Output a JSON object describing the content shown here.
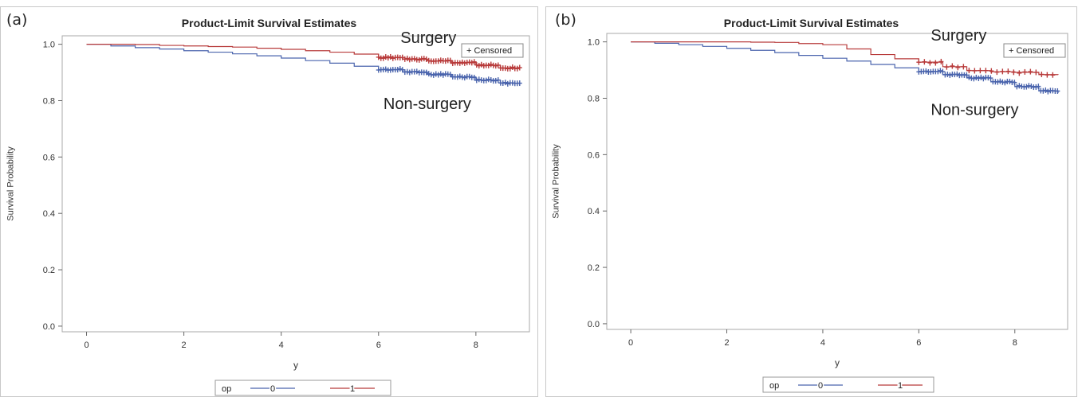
{
  "chart_data": [
    {
      "type": "line",
      "panel_label": "(a)",
      "title": "Product-Limit Survival Estimates",
      "xlabel": "y",
      "ylabel": "Survival Probability",
      "xticks": [
        "0",
        "2",
        "4",
        "6",
        "8"
      ],
      "yticks": [
        "0.0",
        "0.2",
        "0.4",
        "0.6",
        "0.8",
        "1.0"
      ],
      "xlim": [
        -0.5,
        9.1
      ],
      "ylim": [
        -0.02,
        1.03
      ],
      "grid": false,
      "censored_legend": "+ Censored",
      "legend": {
        "title": "op",
        "placement": "bottom",
        "entries": [
          "0",
          "1"
        ]
      },
      "annotations": [
        {
          "text": "Surgery",
          "x": 6.45,
          "y": 1.005
        },
        {
          "text": "Non-surgery",
          "x": 6.1,
          "y": 0.77
        }
      ],
      "series": [
        {
          "legend": "0",
          "color": "#4a64ad",
          "x": [
            0,
            0.5,
            1,
            1.5,
            2,
            2.5,
            3,
            3.5,
            4,
            4.5,
            5,
            5.5,
            6,
            6.5,
            7,
            7.5,
            8,
            8.5,
            8.9
          ],
          "y": [
            1.0,
            0.994,
            0.988,
            0.983,
            0.977,
            0.972,
            0.966,
            0.959,
            0.951,
            0.942,
            0.933,
            0.922,
            0.91,
            0.902,
            0.893,
            0.884,
            0.873,
            0.862,
            0.855
          ],
          "censored_from": 6.0
        },
        {
          "legend": "1",
          "color": "#b83b3b",
          "x": [
            0,
            1,
            1.5,
            2,
            2.5,
            3,
            3.5,
            4,
            4.5,
            5,
            5.5,
            6,
            6.5,
            7,
            7.5,
            8,
            8.5,
            8.9
          ],
          "y": [
            1.0,
            0.999,
            0.996,
            0.994,
            0.992,
            0.99,
            0.986,
            0.982,
            0.977,
            0.972,
            0.965,
            0.953,
            0.947,
            0.941,
            0.935,
            0.926,
            0.916,
            0.913
          ],
          "censored_from": 6.0
        }
      ]
    },
    {
      "type": "line",
      "panel_label": "(b)",
      "title": "Product-Limit Survival Estimates",
      "xlabel": "y",
      "ylabel": "Survival Probability",
      "xticks": [
        "0",
        "2",
        "4",
        "6",
        "8"
      ],
      "yticks": [
        "0.0",
        "0.2",
        "0.4",
        "0.6",
        "0.8",
        "1.0"
      ],
      "xlim": [
        -0.5,
        9.1
      ],
      "ylim": [
        -0.02,
        1.03
      ],
      "grid": false,
      "censored_legend": "+ Censored",
      "legend": {
        "title": "op",
        "placement": "bottom",
        "entries": [
          "0",
          "1"
        ]
      },
      "annotations": [
        {
          "text": "Surgery",
          "x": 6.25,
          "y": 1.005
        },
        {
          "text": "Non-surgery",
          "x": 6.25,
          "y": 0.74
        }
      ],
      "series": [
        {
          "legend": "0",
          "color": "#4a64ad",
          "x": [
            0,
            0.5,
            1,
            1.5,
            2,
            2.5,
            3,
            3.5,
            4,
            4.5,
            5,
            5.5,
            6,
            6.5,
            7,
            7.5,
            8,
            8.5,
            8.9
          ],
          "y": [
            1.0,
            0.995,
            0.99,
            0.984,
            0.977,
            0.97,
            0.962,
            0.952,
            0.942,
            0.932,
            0.92,
            0.908,
            0.895,
            0.884,
            0.872,
            0.858,
            0.842,
            0.826,
            0.818
          ],
          "censored_from": 6.0
        },
        {
          "legend": "1",
          "color": "#b83b3b",
          "x": [
            0,
            1,
            2,
            2.5,
            3,
            3.5,
            4,
            4.5,
            5,
            5.5,
            6,
            6.5,
            7,
            7.5,
            8,
            8.5,
            8.9
          ],
          "y": [
            1.0,
            1.0,
            1.0,
            0.999,
            0.998,
            0.994,
            0.99,
            0.975,
            0.955,
            0.94,
            0.928,
            0.912,
            0.898,
            0.894,
            0.892,
            0.884,
            0.883
          ],
          "censored_from": 6.0
        }
      ]
    }
  ]
}
